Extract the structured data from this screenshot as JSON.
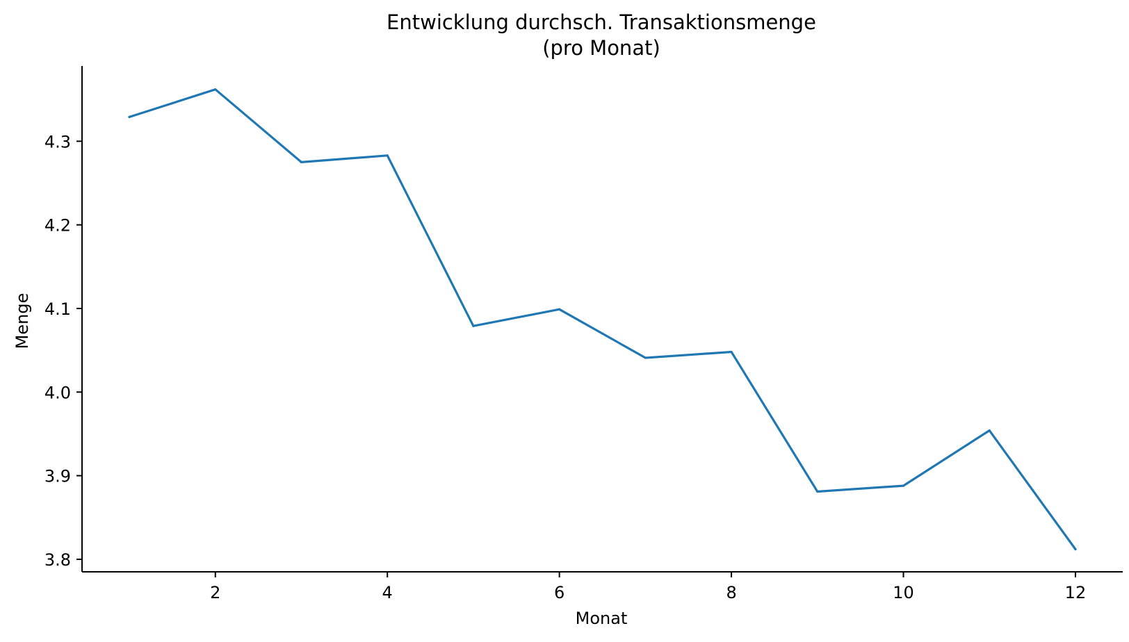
{
  "chart_data": {
    "type": "line",
    "title": "Entwicklung durchsch. Transaktionsmenge",
    "subtitle": "(pro Monat)",
    "xlabel": "Monat",
    "ylabel": "Menge",
    "x": [
      1,
      2,
      3,
      4,
      5,
      6,
      7,
      8,
      9,
      10,
      11,
      12
    ],
    "series": [
      {
        "values": [
          4.329,
          4.362,
          4.275,
          4.283,
          4.079,
          4.099,
          4.041,
          4.048,
          3.881,
          3.888,
          3.954,
          3.812
        ]
      }
    ],
    "xlim": [
      0.45,
      12.55
    ],
    "ylim": [
      3.785,
      4.39
    ],
    "xticks": [
      2,
      4,
      6,
      8,
      10,
      12
    ],
    "yticks": [
      3.8,
      3.9,
      4.0,
      4.1,
      4.2,
      4.3
    ],
    "ytick_labels": [
      "3.8",
      "3.9",
      "4.0",
      "4.1",
      "4.2",
      "4.3"
    ],
    "grid": false,
    "line_color": "#1f77b4"
  }
}
